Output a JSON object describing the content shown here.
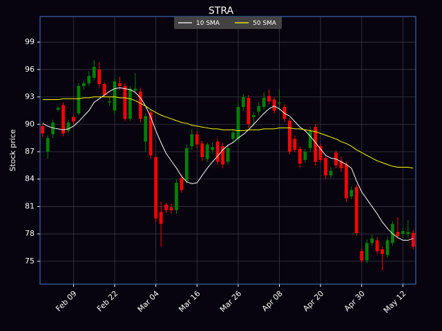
{
  "chart_data": {
    "type": "candlestick",
    "title": "STRA",
    "y_label": "Stock price",
    "categories": [
      null,
      null,
      null,
      null,
      null,
      null,
      "Feb 09",
      null,
      null,
      null,
      null,
      null,
      null,
      null,
      "Feb 22",
      null,
      null,
      null,
      null,
      null,
      null,
      null,
      "Mar 04",
      null,
      null,
      null,
      null,
      null,
      null,
      null,
      "Mar 16",
      null,
      null,
      null,
      null,
      null,
      null,
      null,
      "Mar 26",
      null,
      null,
      null,
      null,
      null,
      null,
      null,
      "Apr 08",
      null,
      null,
      null,
      null,
      null,
      null,
      null,
      "Apr 20",
      null,
      null,
      null,
      null,
      null,
      null,
      null,
      "Apr 30",
      null,
      null,
      null,
      null,
      null,
      null,
      null,
      "May 12",
      null,
      null
    ],
    "open": [
      89.8,
      87.0,
      88.9,
      91.6,
      92.1,
      89.3,
      90.8,
      91.2,
      94.2,
      94.5,
      95.1,
      96.0,
      94.4,
      92.4,
      91.5,
      94.5,
      94.2,
      90.6,
      93.7,
      93.6,
      88.1,
      91.3,
      86.4,
      80.4,
      81.2,
      80.9,
      80.6,
      84.1,
      83.8,
      87.6,
      88.9,
      87.9,
      86.2,
      87.2,
      88.1,
      87.6,
      85.9,
      88.4,
      88.4,
      91.9,
      92.9,
      90.8,
      91.4,
      91.9,
      93.1,
      92.7,
      92.3,
      91.9,
      90.4,
      88.4,
      87.3,
      86.1,
      87.4,
      89.7,
      87.6,
      86.3,
      84.4,
      86.9,
      86.0,
      85.6,
      82.1,
      83.1,
      76.1,
      75.1,
      77.0,
      77.3,
      76.3,
      75.7,
      77.0,
      78.2,
      78.0,
      78.0,
      78.1
    ],
    "high": [
      90.0,
      88.8,
      90.5,
      92.0,
      92.4,
      90.5,
      91.0,
      94.5,
      94.8,
      95.8,
      97.0,
      96.8,
      94.6,
      93.0,
      95.0,
      95.2,
      94.5,
      94.2,
      95.6,
      94.0,
      91.2,
      91.6,
      86.6,
      81.5,
      81.4,
      81.3,
      84.0,
      84.5,
      87.8,
      89.5,
      89.2,
      88.2,
      88.0,
      88.0,
      88.4,
      88.0,
      87.8,
      89.5,
      92.3,
      93.3,
      93.2,
      91.3,
      92.4,
      93.5,
      93.8,
      93.0,
      93.9,
      92.2,
      90.6,
      88.8,
      87.6,
      87.3,
      89.7,
      90.0,
      87.9,
      86.6,
      85.3,
      87.1,
      86.5,
      85.9,
      83.2,
      83.4,
      76.4,
      77.4,
      77.9,
      77.6,
      76.6,
      77.7,
      79.4,
      79.8,
      78.6,
      79.5,
      78.4
    ],
    "low": [
      88.6,
      86.2,
      88.5,
      91.4,
      88.7,
      89.0,
      90.0,
      91.0,
      93.8,
      94.2,
      94.8,
      94.0,
      93.0,
      92.0,
      91.0,
      93.8,
      90.4,
      90.4,
      93.5,
      90.2,
      87.0,
      86.2,
      79.3,
      76.6,
      80.3,
      80.2,
      80.2,
      82.5,
      83.5,
      87.2,
      87.4,
      86.0,
      85.9,
      86.8,
      85.6,
      85.2,
      85.6,
      88.0,
      88.0,
      91.5,
      89.6,
      89.8,
      91.0,
      91.6,
      92.2,
      91.2,
      91.5,
      90.3,
      86.7,
      87.0,
      85.2,
      85.8,
      87.0,
      85.5,
      85.8,
      84.0,
      84.1,
      85.2,
      84.8,
      81.5,
      81.8,
      77.8,
      74.8,
      74.8,
      76.7,
      75.8,
      74.0,
      75.4,
      76.7,
      77.5,
      77.6,
      77.6,
      76.3
    ],
    "close": [
      89.0,
      88.5,
      90.2,
      91.8,
      89.0,
      90.2,
      90.3,
      94.2,
      94.5,
      95.3,
      96.3,
      94.4,
      93.2,
      92.5,
      94.7,
      94.2,
      90.6,
      93.9,
      93.9,
      90.6,
      90.9,
      86.6,
      79.7,
      79.1,
      80.6,
      80.6,
      83.6,
      82.8,
      87.4,
      88.9,
      87.8,
      86.4,
      87.8,
      87.5,
      85.9,
      85.6,
      87.4,
      89.1,
      91.9,
      93.0,
      90.0,
      91.0,
      92.0,
      92.9,
      92.5,
      91.5,
      92.4,
      90.6,
      87.0,
      87.2,
      85.7,
      87.0,
      89.3,
      85.9,
      86.1,
      84.4,
      84.9,
      85.5,
      85.2,
      81.9,
      82.8,
      78.1,
      75.1,
      77.0,
      77.5,
      76.1,
      75.8,
      77.3,
      79.1,
      77.8,
      78.3,
      78.2,
      76.6
    ],
    "up_color": "#008000",
    "down_color": "#ff0000",
    "overlays": [
      {
        "name": "10 SMA",
        "color": "#ffffff",
        "values": [
          90.1,
          89.8,
          89.6,
          89.5,
          89.4,
          89.5,
          89.8,
          90.3,
          90.9,
          91.5,
          92.4,
          92.8,
          93.2,
          93.6,
          93.9,
          94.0,
          93.9,
          93.8,
          93.5,
          92.9,
          92.0,
          90.8,
          89.3,
          88.0,
          86.8,
          86.0,
          85.2,
          84.3,
          83.7,
          83.5,
          83.6,
          84.4,
          85.2,
          85.9,
          86.5,
          87.2,
          87.7,
          88.0,
          88.5,
          88.9,
          89.4,
          90.0,
          90.6,
          91.2,
          91.7,
          92.0,
          91.7,
          91.2,
          90.9,
          90.3,
          89.7,
          89.3,
          88.7,
          88.0,
          87.3,
          86.6,
          86.3,
          86.2,
          85.9,
          85.6,
          85.2,
          83.8,
          82.6,
          81.8,
          81.0,
          80.2,
          79.3,
          78.6,
          78.0,
          77.6,
          77.3,
          77.3,
          77.5
        ]
      },
      {
        "name": "50 SMA",
        "color": "#ffff00",
        "values": [
          92.7,
          92.7,
          92.7,
          92.7,
          92.8,
          92.8,
          92.8,
          92.8,
          92.9,
          92.9,
          93.0,
          93.0,
          93.0,
          93.0,
          93.0,
          92.9,
          92.9,
          92.8,
          92.6,
          92.3,
          92.0,
          91.6,
          91.3,
          91.0,
          90.8,
          90.6,
          90.4,
          90.2,
          90.1,
          89.9,
          89.8,
          89.7,
          89.6,
          89.5,
          89.5,
          89.4,
          89.4,
          89.4,
          89.3,
          89.3,
          89.4,
          89.4,
          89.4,
          89.5,
          89.5,
          89.5,
          89.6,
          89.6,
          89.6,
          89.5,
          89.5,
          89.4,
          89.3,
          89.2,
          89.0,
          88.8,
          88.6,
          88.4,
          88.1,
          87.9,
          87.6,
          87.2,
          86.9,
          86.6,
          86.3,
          86.0,
          85.8,
          85.6,
          85.4,
          85.3,
          85.3,
          85.3,
          85.2
        ]
      }
    ],
    "ylim": [
      72.5,
      101.8
    ],
    "yticks": [
      75,
      78,
      81,
      84,
      87,
      90,
      93,
      96,
      99
    ],
    "grid": true,
    "legend": "upper center",
    "background": "#07040f",
    "frame_color": "#4a78d0"
  }
}
